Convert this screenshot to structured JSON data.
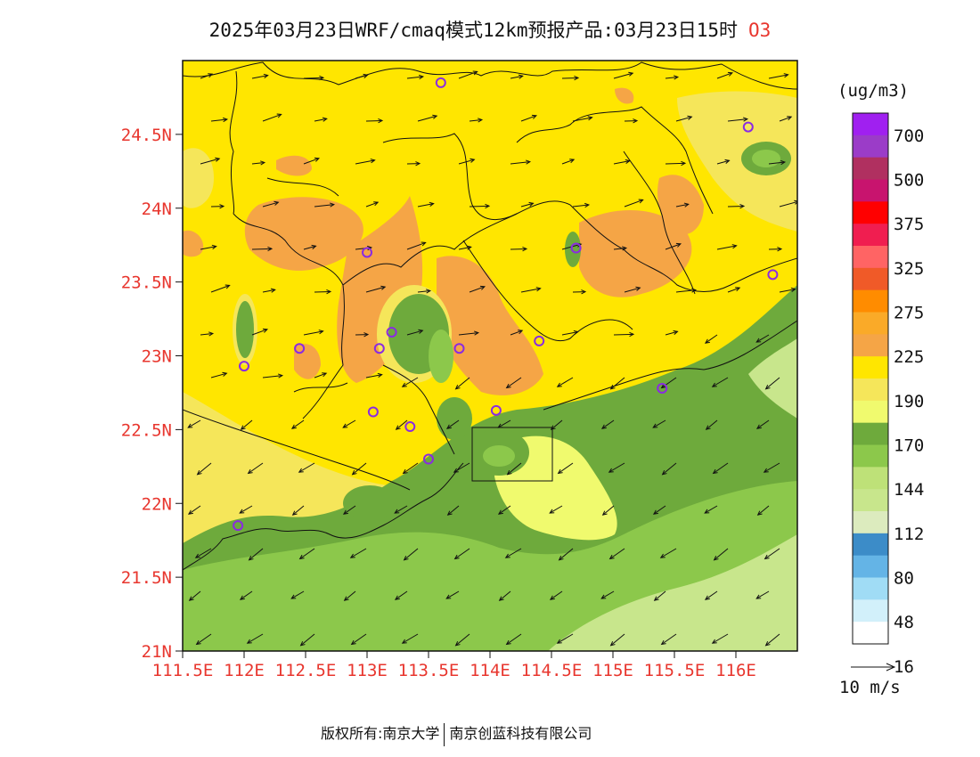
{
  "title": "2025年03月23日WRF/cmaq模式12km预报产品:03月23日15时",
  "pollutant": "O3",
  "map": {
    "lon_range": [
      111.5,
      116.5
    ],
    "lat_range": [
      21,
      25
    ],
    "lat_labels": [
      "21N",
      "21.5N",
      "22N",
      "22.5N",
      "23N",
      "23.5N",
      "24N",
      "24.5N"
    ],
    "lat_values": [
      21,
      21.5,
      22,
      22.5,
      23,
      23.5,
      24,
      24.5
    ],
    "lon_labels": [
      "111.5E",
      "112E",
      "112.5E",
      "113E",
      "113.5E",
      "114E",
      "114.5E",
      "115E",
      "115.5E",
      "116E"
    ],
    "lon_values": [
      111.5,
      112,
      112.5,
      113,
      113.5,
      114,
      114.5,
      115,
      115.5,
      116
    ],
    "stations": [
      [
        113.6,
        24.85
      ],
      [
        116.1,
        24.55
      ],
      [
        114.7,
        23.73
      ],
      [
        113.0,
        23.7
      ],
      [
        116.3,
        23.55
      ],
      [
        113.2,
        23.16
      ],
      [
        112.45,
        23.05
      ],
      [
        113.1,
        23.05
      ],
      [
        113.75,
        23.05
      ],
      [
        114.4,
        23.1
      ],
      [
        112.0,
        22.93
      ],
      [
        115.4,
        22.78
      ],
      [
        113.05,
        22.62
      ],
      [
        114.05,
        22.63
      ],
      [
        113.35,
        22.52
      ],
      [
        113.5,
        22.3
      ],
      [
        111.95,
        21.85
      ]
    ]
  },
  "legend": {
    "unit": "(ug/m3)",
    "labels": [
      "700",
      "500",
      "375",
      "325",
      "275",
      "225",
      "190",
      "170",
      "144",
      "112",
      "80",
      "48",
      "16"
    ],
    "colors": [
      "#a020f0",
      "#9b3cc8",
      "#b03060",
      "#c8146e",
      "#ff0000",
      "#f01e50",
      "#ff6464",
      "#f05a28",
      "#ff8c00",
      "#faaa28",
      "#f5a546",
      "#ffe600",
      "#f5e65a",
      "#f0fa6e",
      "#6eaa3c",
      "#8cc84b",
      "#bee178",
      "#c8e68c",
      "#dcebbe",
      "#3c8cc8",
      "#64b4e6",
      "#a0dcf5",
      "#d2f0fa",
      "#ffffff"
    ]
  },
  "wind_scale": {
    "label": "10 m/s"
  },
  "footer": {
    "left": "版权所有:南京大学",
    "right": "南京创蓝科技有限公司"
  }
}
